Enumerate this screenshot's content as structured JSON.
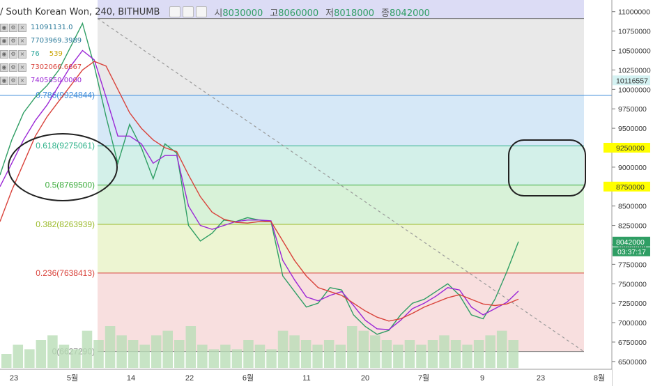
{
  "header": {
    "symbol": "/ South Korean Won, 240, BITHUMB",
    "open_label": "시",
    "open": "8030000",
    "high_label": "고",
    "high": "8060000",
    "low_label": "저",
    "low": "8018000",
    "close_label": "종",
    "close": "8042000"
  },
  "indicators": [
    {
      "label": "11091131.0",
      "color": "#2a7a9a"
    },
    {
      "label": "7703969.3989",
      "color": "#2a7a9a"
    },
    {
      "label": "76",
      "label2": "539",
      "color": "#2aa59a",
      "color2": "#c9a300"
    },
    {
      "label": "7302066.6667",
      "color": "#d9433b"
    },
    {
      "label": "7405850.0000",
      "color": "#9b27d6"
    }
  ],
  "chart_data": {
    "type": "line",
    "title": "",
    "xlabel": "",
    "ylabel": "",
    "ylim": [
      6400000,
      11150000
    ],
    "y_ticks": [
      6500000,
      6750000,
      7000000,
      7250000,
      7500000,
      7750000,
      8000000,
      8250000,
      8500000,
      8750000,
      9000000,
      9250000,
      9500000,
      9750000,
      10000000,
      10250000,
      10500000,
      10750000,
      11000000
    ],
    "x_ticks": [
      "23",
      "5월",
      "14",
      "22",
      "6월",
      "11",
      "20",
      "7월",
      "9",
      "23",
      "8월"
    ],
    "fib_levels": [
      {
        "ratio": "0.786",
        "price": 9924844,
        "label": "0.786(9924844)",
        "color": "#3b8ad9"
      },
      {
        "ratio": "0.618",
        "price": 9275061,
        "label": "0.618(9275061)",
        "color": "#2fb28a"
      },
      {
        "ratio": "0.5",
        "price": 8769500,
        "label": "0.5(8769500)",
        "color": "#3aab3a"
      },
      {
        "ratio": "0.382",
        "price": 8263939,
        "label": "0.382(8263939)",
        "color": "#9bba2a"
      },
      {
        "ratio": "0.236",
        "price": 7638413,
        "label": "0.236(7638413)",
        "color": "#d9433b"
      },
      {
        "ratio": "0",
        "price": 6627290,
        "label": "0(6627290)",
        "color": "#888888"
      }
    ],
    "fib_top_price": 10911313,
    "price_tags": [
      {
        "price": 10116557,
        "label": "10116557",
        "bg": "#d4f2f2",
        "fg": "#333333"
      },
      {
        "price": 9250000,
        "label": "9250000",
        "bg": "#ffff00",
        "fg": "#333333"
      },
      {
        "price": 8750000,
        "label": "8750000",
        "bg": "#ffff00",
        "fg": "#333333"
      },
      {
        "price": 8042000,
        "label": "8042000",
        "bg": "#2f9e64",
        "fg": "#ffffff"
      }
    ],
    "countdown": "03:37:17",
    "series": [
      {
        "name": "price",
        "color": "#2f9e64",
        "values": [
          8900000,
          9350000,
          9700000,
          9900000,
          10050000,
          10250000,
          10550000,
          10850000,
          10300000,
          9650000,
          9050000,
          9550000,
          9250000,
          8850000,
          9300000,
          9180000,
          8250000,
          8050000,
          8150000,
          8320000,
          8300000,
          8350000,
          8320000,
          8300000,
          7600000,
          7400000,
          7200000,
          7250000,
          7450000,
          7420000,
          7100000,
          6950000,
          6850000,
          6900000,
          7100000,
          7250000,
          7300000,
          7400000,
          7500000,
          7350000,
          7100000,
          7050000,
          7300000,
          7650000,
          8042000
        ]
      },
      {
        "name": "MA-fast",
        "color": "#9b27d6",
        "values": [
          8750000,
          9050000,
          9350000,
          9600000,
          9800000,
          10050000,
          10300000,
          10500000,
          10380000,
          9900000,
          9400000,
          9400000,
          9300000,
          9050000,
          9150000,
          9150000,
          8500000,
          8250000,
          8200000,
          8250000,
          8300000,
          8320000,
          8320000,
          8310000,
          7800000,
          7550000,
          7330000,
          7280000,
          7350000,
          7400000,
          7220000,
          7030000,
          6920000,
          6910000,
          7030000,
          7180000,
          7250000,
          7340000,
          7450000,
          7420000,
          7200000,
          7100000,
          7180000,
          7260000,
          7406000
        ]
      },
      {
        "name": "MA-slow",
        "color": "#d9433b",
        "values": [
          8300000,
          8700000,
          9050000,
          9400000,
          9650000,
          9850000,
          10050000,
          10250000,
          10360000,
          10300000,
          10000000,
          9700000,
          9500000,
          9350000,
          9250000,
          9200000,
          8900000,
          8620000,
          8420000,
          8330000,
          8290000,
          8280000,
          8300000,
          8300000,
          8050000,
          7800000,
          7600000,
          7450000,
          7400000,
          7350000,
          7250000,
          7150000,
          7070000,
          7020000,
          7050000,
          7120000,
          7200000,
          7260000,
          7320000,
          7360000,
          7300000,
          7240000,
          7220000,
          7240000,
          7302000
        ]
      }
    ],
    "volume": [
      3,
      5,
      4,
      6,
      7,
      5,
      4,
      8,
      6,
      9,
      7,
      6,
      5,
      7,
      8,
      6,
      9,
      5,
      4,
      5,
      4,
      6,
      5,
      4,
      8,
      7,
      6,
      5,
      6,
      5,
      9,
      8,
      7,
      6,
      5,
      6,
      5,
      6,
      7,
      6,
      5,
      6,
      7,
      8,
      6
    ]
  }
}
